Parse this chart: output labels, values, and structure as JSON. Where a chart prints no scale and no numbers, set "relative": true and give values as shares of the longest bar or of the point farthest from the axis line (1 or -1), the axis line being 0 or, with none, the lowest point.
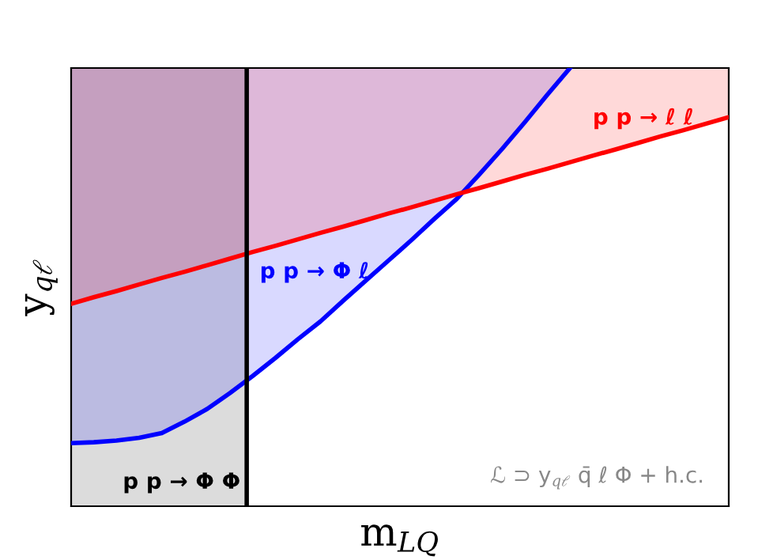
{
  "chart_data": {
    "type": "line",
    "relative": true,
    "xlabel": "m$_{LQ}$",
    "ylabel": "y$_{qℓ}$",
    "categories": [
      null,
      null,
      null,
      null,
      null,
      null,
      null,
      null,
      null,
      null,
      null,
      null,
      null,
      null,
      null,
      null,
      null,
      null,
      null,
      null,
      null,
      null,
      null,
      null,
      null,
      null,
      null,
      null,
      null,
      null
    ],
    "series": [
      {
        "color": "#0000ff",
        "values": [
          0.144,
          0.146,
          0.15,
          0.156,
          0.167,
          0.193,
          0.222,
          0.258,
          0.297,
          0.338,
          0.381,
          0.422,
          0.469,
          0.515,
          0.561,
          0.607,
          0.655,
          0.701,
          0.757,
          0.815,
          0.876,
          0.939,
          1.0,
          null,
          null,
          null,
          null,
          null,
          null,
          null
        ]
      },
      {
        "color": "#ff0000",
        "values": [
          0.462,
          0.477,
          0.491,
          0.506,
          0.521,
          0.535,
          0.55,
          0.565,
          0.58,
          0.594,
          0.609,
          0.624,
          0.638,
          0.653,
          0.668,
          0.682,
          0.697,
          0.712,
          0.726,
          0.741,
          0.756,
          0.77,
          0.785,
          0.8,
          0.814,
          0.829,
          0.844,
          0.858,
          0.873,
          0.888
        ]
      }
    ],
    "annotations": [
      "p p → ℓ ℓ",
      "p p → Φ ℓ",
      "p p → Φ Φ",
      "ℒ ⊃ y$_{qℓ}$ q̄ ℓ Φ + h.c."
    ]
  }
}
